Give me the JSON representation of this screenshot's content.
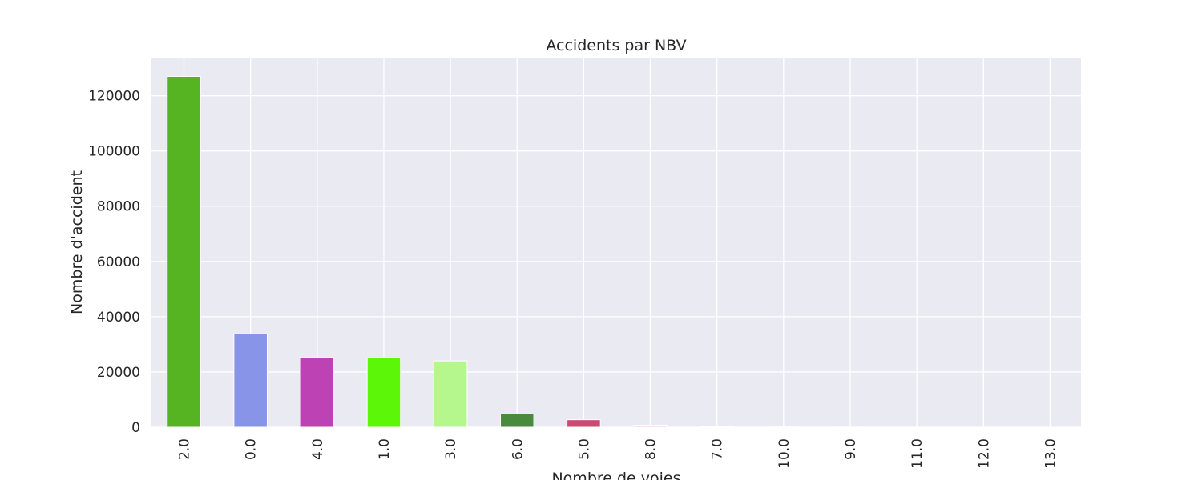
{
  "chart_data": {
    "type": "bar",
    "title": "Accidents par NBV",
    "xlabel": "Nombre de voies",
    "ylabel": "Nombre d'accident",
    "categories": [
      "2.0",
      "0.0",
      "4.0",
      "1.0",
      "3.0",
      "6.0",
      "5.0",
      "8.0",
      "7.0",
      "10.0",
      "9.0",
      "11.0",
      "12.0",
      "13.0"
    ],
    "values": [
      127000,
      33800,
      25200,
      25100,
      24000,
      4800,
      2700,
      700,
      200,
      80,
      50,
      20,
      10,
      5
    ],
    "colors": [
      "#56b321",
      "#8794e8",
      "#bd42b3",
      "#5cf708",
      "#b5f78d",
      "#4a8a3f",
      "#c94a72",
      "#f2c6ef",
      "#9f7cc2",
      "#5aa0d0",
      "#d4a24a",
      "#7bd3c0",
      "#e38d8d",
      "#8dc97b"
    ],
    "ylim": [
      0,
      133500
    ],
    "yticks": [
      0,
      20000,
      40000,
      60000,
      80000,
      100000,
      120000
    ],
    "grid": true,
    "background": "#eaeaf2",
    "gridColor": "#ffffff",
    "legend": "none"
  }
}
